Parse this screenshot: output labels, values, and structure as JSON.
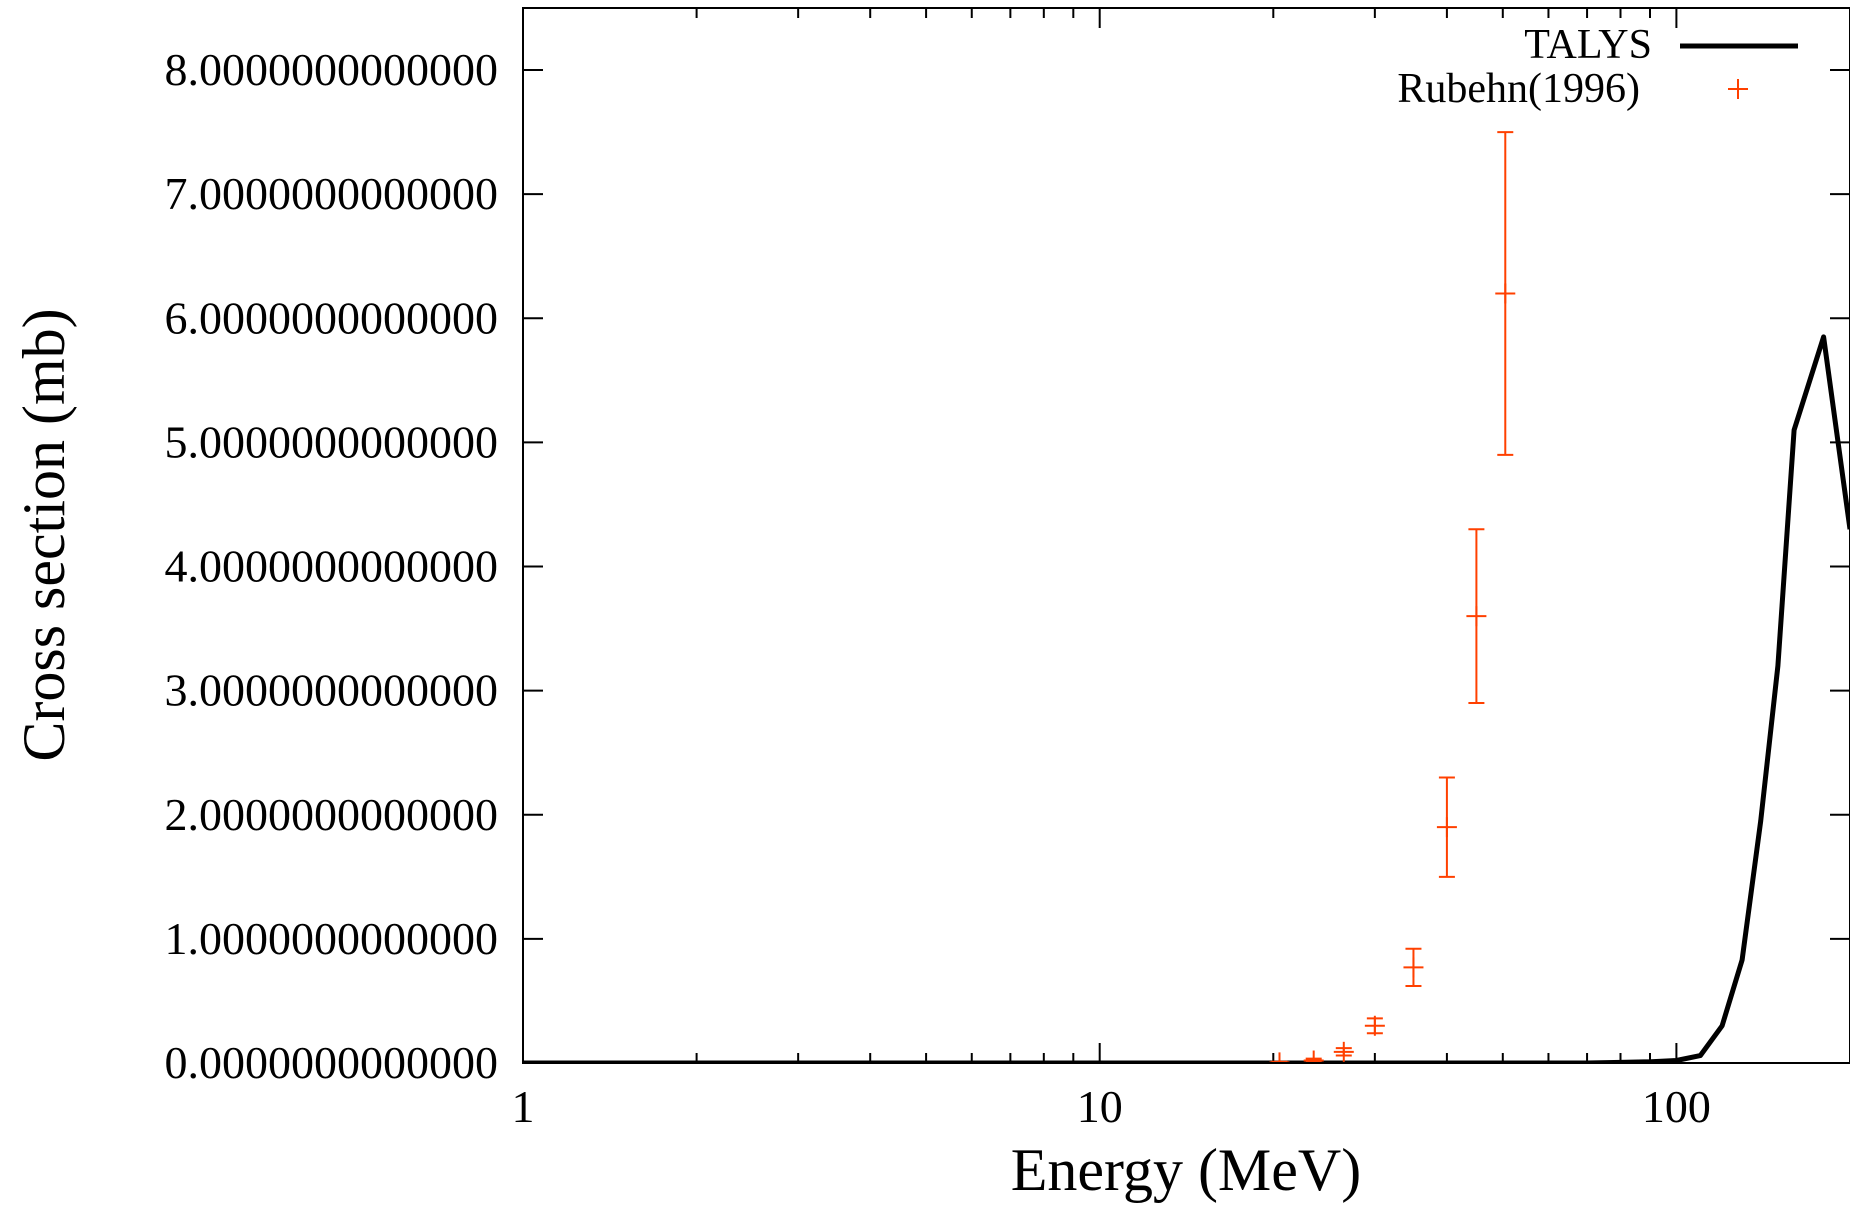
{
  "chart_data": {
    "type": "scatter",
    "xlabel": "Energy (MeV)",
    "ylabel": "Cross section (mb)",
    "xscale": "log",
    "xlim": [
      1,
      200
    ],
    "ylim": [
      0,
      8.5
    ],
    "x_ticks": [
      {
        "value": 1,
        "label": "1"
      },
      {
        "value": 10,
        "label": "10"
      },
      {
        "value": 100,
        "label": "100"
      }
    ],
    "y_ticks": [
      {
        "value": 0,
        "label": "0.0000000000000"
      },
      {
        "value": 1,
        "label": "1.0000000000000"
      },
      {
        "value": 2,
        "label": "2.0000000000000"
      },
      {
        "value": 3,
        "label": "3.0000000000000"
      },
      {
        "value": 4,
        "label": "4.0000000000000"
      },
      {
        "value": 5,
        "label": "5.0000000000000"
      },
      {
        "value": 6,
        "label": "6.0000000000000"
      },
      {
        "value": 7,
        "label": "7.0000000000000"
      },
      {
        "value": 8,
        "label": "8.0000000000000"
      }
    ],
    "legend_position": "top-right",
    "series": [
      {
        "name": "TALYS",
        "kind": "line",
        "color": "#000000",
        "x": [
          1,
          10,
          50,
          70,
          80,
          90,
          100,
          110,
          120,
          130,
          140,
          150,
          160,
          180,
          200
        ],
        "y": [
          0,
          0,
          0,
          0,
          0.005,
          0.01,
          0.02,
          0.06,
          0.3,
          0.83,
          1.95,
          3.2,
          5.1,
          5.85,
          4.3
        ]
      },
      {
        "name": "Rubehn(1996)",
        "kind": "points_errorbars",
        "color": "#ff4000",
        "x": [
          20.5,
          23.5,
          26.5,
          30,
          35,
          40,
          45,
          50.5
        ],
        "y": [
          0.005,
          0.02,
          0.09,
          0.3,
          0.77,
          1.9,
          3.6,
          6.2
        ],
        "err_low": [
          0.005,
          0.015,
          0.03,
          0.06,
          0.15,
          0.4,
          0.7,
          1.3
        ],
        "err_high": [
          0.005,
          0.015,
          0.03,
          0.06,
          0.15,
          0.4,
          0.7,
          1.3
        ]
      }
    ]
  }
}
